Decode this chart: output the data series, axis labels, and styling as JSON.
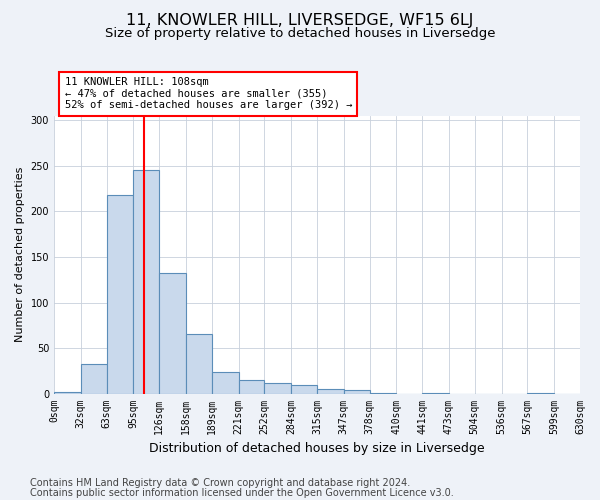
{
  "title": "11, KNOWLER HILL, LIVERSEDGE, WF15 6LJ",
  "subtitle": "Size of property relative to detached houses in Liversedge",
  "xlabel": "Distribution of detached houses by size in Liversedge",
  "ylabel": "Number of detached properties",
  "footer_line1": "Contains HM Land Registry data © Crown copyright and database right 2024.",
  "footer_line2": "Contains public sector information licensed under the Open Government Licence v3.0.",
  "bin_edges": [
    0,
    32,
    63,
    95,
    126,
    158,
    189,
    221,
    252,
    284,
    315,
    347,
    378,
    410,
    441,
    473,
    504,
    536,
    567,
    599,
    630
  ],
  "bin_labels": [
    "0sqm",
    "32sqm",
    "63sqm",
    "95sqm",
    "126sqm",
    "158sqm",
    "189sqm",
    "221sqm",
    "252sqm",
    "284sqm",
    "315sqm",
    "347sqm",
    "378sqm",
    "410sqm",
    "441sqm",
    "473sqm",
    "504sqm",
    "536sqm",
    "567sqm",
    "599sqm",
    "630sqm"
  ],
  "bar_heights": [
    2,
    32,
    218,
    246,
    132,
    65,
    24,
    15,
    12,
    9,
    5,
    4,
    1,
    0,
    1,
    0,
    0,
    0,
    1,
    0
  ],
  "bar_color": "#c9d9ec",
  "bar_edge_color": "#5b8db8",
  "property_size": 108,
  "annotation_line1": "11 KNOWLER HILL: 108sqm",
  "annotation_line2": "← 47% of detached houses are smaller (355)",
  "annotation_line3": "52% of semi-detached houses are larger (392) →",
  "annotation_box_color": "white",
  "annotation_box_edge_color": "red",
  "vline_color": "red",
  "background_color": "#eef2f8",
  "plot_bg_color": "white",
  "grid_color": "#c8d0dc",
  "ylim": [
    0,
    305
  ],
  "xlim": [
    0,
    630
  ],
  "title_fontsize": 11.5,
  "subtitle_fontsize": 9.5,
  "xlabel_fontsize": 9,
  "ylabel_fontsize": 8,
  "tick_fontsize": 7,
  "footer_fontsize": 7
}
